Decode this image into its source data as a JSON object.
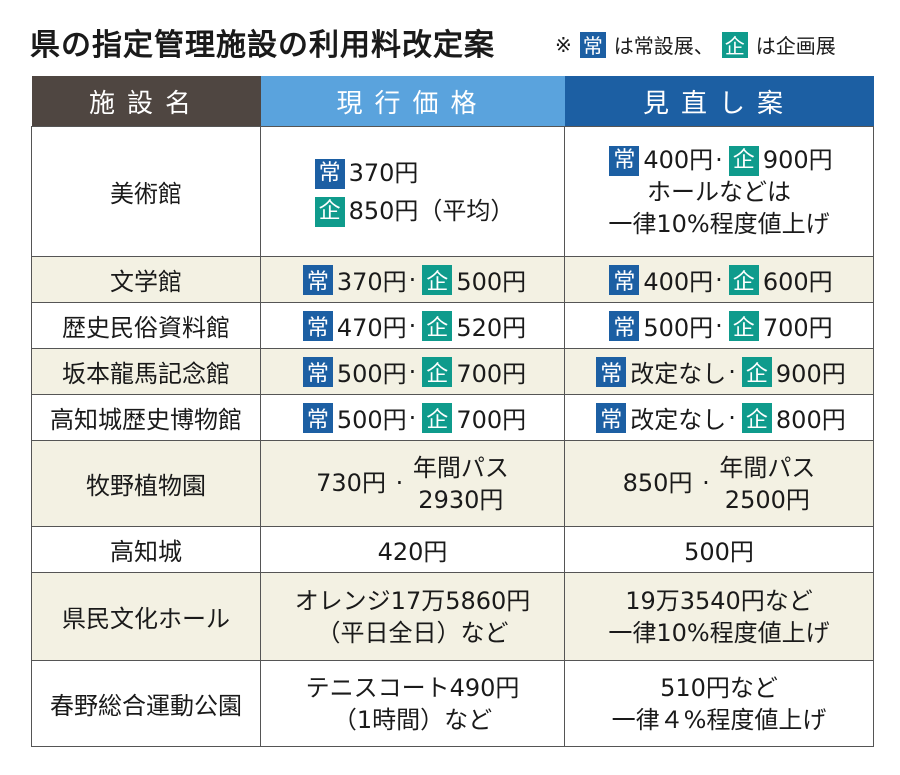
{
  "title": "県の指定管理施設の利用料改定案",
  "note": {
    "mark": "※",
    "jo": "常",
    "jo_text": "は常設展、",
    "ki": "企",
    "ki_text": "は企画展"
  },
  "headers": {
    "name": "施設名",
    "current": "現行価格",
    "revised": "見直し案"
  },
  "colors": {
    "header_dark": "#4f4641",
    "header_light_blue": "#5aa3dd",
    "header_blue": "#1c5fa3",
    "badge_jo": "#1c5fa3",
    "badge_ki": "#0f9b8c",
    "row_alt": "#f3f1e3"
  },
  "rows": [
    {
      "name": "美術館",
      "cur_jo": "370円",
      "cur_ki": "850円（平均）",
      "rev_jo": "400円",
      "rev_ki": "900円",
      "rev_note1": "ホールなどは",
      "rev_note2": "一律10%程度値上げ"
    },
    {
      "name": "文学館",
      "cur_jo": "370円",
      "cur_ki": "500円",
      "rev_jo": "400円",
      "rev_ki": "600円"
    },
    {
      "name": "歴史民俗資料館",
      "cur_jo": "470円",
      "cur_ki": "520円",
      "rev_jo": "500円",
      "rev_ki": "700円"
    },
    {
      "name": "坂本龍馬記念館",
      "cur_jo": "500円",
      "cur_ki": "700円",
      "rev_jo": "改定なし",
      "rev_ki": "900円"
    },
    {
      "name": "高知城歴史博物館",
      "cur_jo": "500円",
      "cur_ki": "700円",
      "rev_jo": "改定なし",
      "rev_ki": "800円"
    },
    {
      "name": "牧野植物園",
      "cur_a": "730円",
      "cur_b1": "年間パス",
      "cur_b2": "2930円",
      "rev_a": "850円",
      "rev_b1": "年間パス",
      "rev_b2": "2500円"
    },
    {
      "name": "高知城",
      "cur": "420円",
      "rev": "500円"
    },
    {
      "name": "県民文化ホール",
      "cur1": "オレンジ17万5860円",
      "cur2": "（平日全日）など",
      "rev1": "19万3540円など",
      "rev2": "一律10%程度値上げ"
    },
    {
      "name": "春野総合運動公園",
      "cur1": "テニスコート490円",
      "cur2": "（1時間）など",
      "rev1": "510円など",
      "rev2": "一律４%程度値上げ"
    }
  ]
}
